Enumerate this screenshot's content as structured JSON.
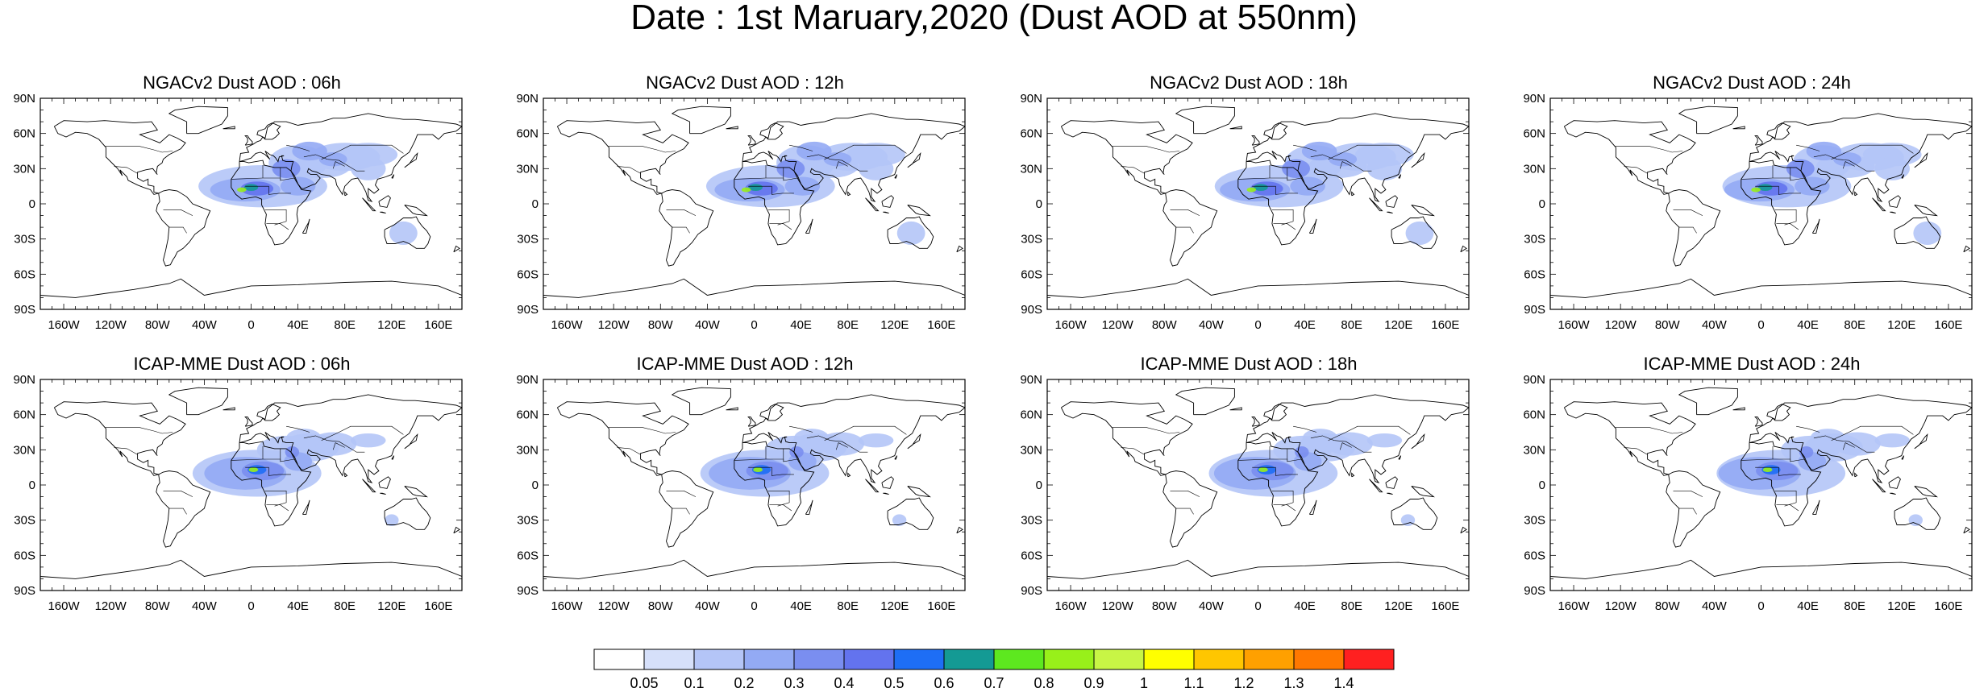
{
  "title": "Date : 1st Maruary,2020 (Dust AOD at 550nm)",
  "panels": [
    {
      "title": "NGACv2 Dust AOD : 06h",
      "model": "NGACv2"
    },
    {
      "title": "NGACv2 Dust AOD : 12h",
      "model": "NGACv2"
    },
    {
      "title": "NGACv2 Dust AOD : 18h",
      "model": "NGACv2"
    },
    {
      "title": "NGACv2 Dust AOD : 24h",
      "model": "NGACv2"
    },
    {
      "title": "ICAP-MME Dust AOD : 06h",
      "model": "ICAP-MME"
    },
    {
      "title": "ICAP-MME Dust AOD : 12h",
      "model": "ICAP-MME"
    },
    {
      "title": "ICAP-MME Dust AOD : 18h",
      "model": "ICAP-MME"
    },
    {
      "title": "ICAP-MME Dust AOD : 24h",
      "model": "ICAP-MME"
    }
  ],
  "lat_labels": [
    "90N",
    "60N",
    "30N",
    "0",
    "30S",
    "60S",
    "90S"
  ],
  "lon_labels": [
    "160W",
    "120W",
    "80W",
    "40W",
    "0",
    "40E",
    "80E",
    "120E",
    "160E"
  ],
  "colorbar": {
    "labels": [
      "0.05",
      "0.1",
      "0.2",
      "0.3",
      "0.4",
      "0.5",
      "0.6",
      "0.7",
      "0.8",
      "0.9",
      "1",
      "1.1",
      "1.2",
      "1.3",
      "1.4"
    ],
    "colors": [
      "#ffffff",
      "#d6e0fa",
      "#b4c5f7",
      "#93aaf4",
      "#7a8ef0",
      "#6373ee",
      "#1e6ef5",
      "#149a94",
      "#5de81f",
      "#98f01a",
      "#c8f545",
      "#ffff00",
      "#ffc600",
      "#ffa000",
      "#ff7800",
      "#ff2020"
    ]
  },
  "colors": {
    "coast": "#000000",
    "dust_light": "#d6e0fa",
    "dust_mid": "#b4c5f7",
    "dust_high": "#7a8ef0",
    "dust_peak": "#5de81f"
  }
}
